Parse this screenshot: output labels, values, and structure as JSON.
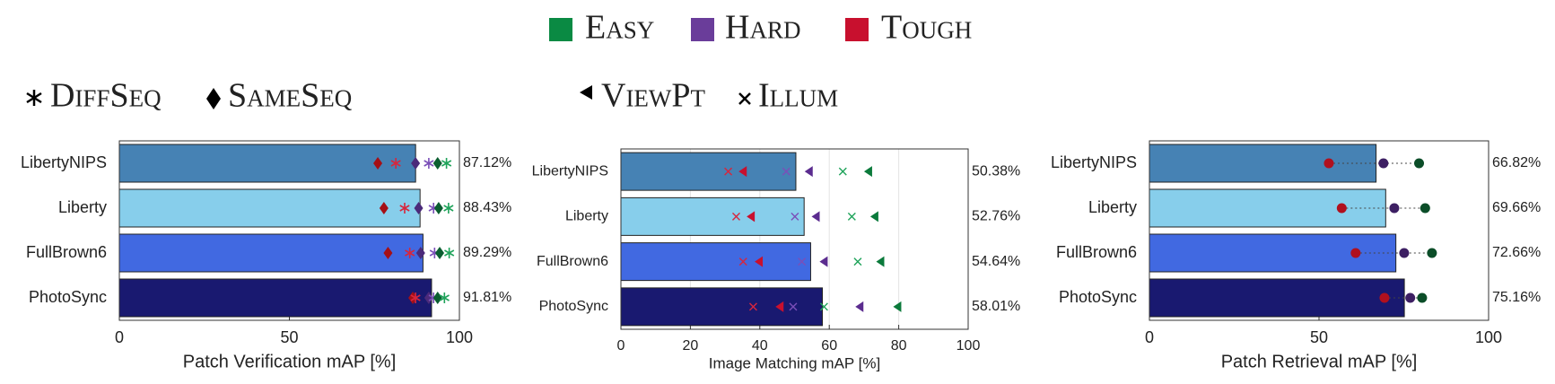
{
  "legend": [
    {
      "name": "Easy",
      "color": "#0a8a43"
    },
    {
      "name": "Hard",
      "color": "#6a3d9a"
    },
    {
      "name": "Tough",
      "color": "#c8102e"
    }
  ],
  "chart_data": [
    {
      "type": "bar",
      "xlabel": "Patch Verification mAP [%]",
      "marker_legend": [
        "DiffSeq",
        "SameSeq"
      ],
      "categories": [
        "LibertyNIPS",
        "Liberty",
        "FullBrown6",
        "PhotoSync"
      ],
      "values": [
        87.12,
        88.43,
        89.29,
        91.81
      ],
      "value_labels": [
        "87.12%",
        "88.43%",
        "89.29%",
        "91.81%"
      ],
      "bar_colors": [
        "#4682b4",
        "#87ceeb",
        "#4169e1",
        "#191970"
      ],
      "xlim": [
        0,
        100
      ],
      "xticks": [
        0,
        50,
        100
      ],
      "grid": false,
      "series": [
        {
          "name": "Tough",
          "marker": "SameSeq",
          "shape": "diamond",
          "color": "#a50f15",
          "values": [
            76,
            77.8,
            79,
            86.3
          ]
        },
        {
          "name": "Tough",
          "marker": "DiffSeq",
          "shape": "star",
          "color": "#d7263d",
          "values": [
            81.3,
            83.9,
            85.4,
            87.1
          ]
        },
        {
          "name": "Hard",
          "marker": "SameSeq",
          "shape": "diamond",
          "color": "#4b2a7a",
          "values": [
            87.1,
            88,
            88.6,
            91
          ]
        },
        {
          "name": "Hard",
          "marker": "DiffSeq",
          "shape": "star",
          "color": "#7b4fb8",
          "values": [
            91,
            92.4,
            92.7,
            92.4
          ]
        },
        {
          "name": "Easy",
          "marker": "SameSeq",
          "shape": "diamond",
          "color": "#0b5e30",
          "values": [
            93.6,
            93.9,
            94.2,
            93.6
          ]
        },
        {
          "name": "Easy",
          "marker": "DiffSeq",
          "shape": "star",
          "color": "#1fa35a",
          "values": [
            96.2,
            96.8,
            97,
            95.6
          ]
        }
      ]
    },
    {
      "type": "bar",
      "xlabel": "Image Matching mAP [%]",
      "marker_legend": [
        "ViewPt",
        "Illum"
      ],
      "categories": [
        "LibertyNIPS",
        "Liberty",
        "FullBrown6",
        "PhotoSync"
      ],
      "values": [
        50.38,
        52.76,
        54.64,
        58.01
      ],
      "value_labels": [
        "50.38%",
        "52.76%",
        "54.64%",
        "58.01%"
      ],
      "bar_colors": [
        "#4682b4",
        "#87ceeb",
        "#4169e1",
        "#191970"
      ],
      "xlim": [
        0,
        100
      ],
      "xticks": [
        0,
        20,
        40,
        60,
        80,
        100
      ],
      "grid": true,
      "series": [
        {
          "name": "Tough",
          "marker": "Illum",
          "shape": "cross",
          "color": "#d7263d",
          "values": [
            30.9,
            33.2,
            35.2,
            38.1
          ]
        },
        {
          "name": "Tough",
          "marker": "ViewPt",
          "shape": "triangle",
          "color": "#c8102e",
          "values": [
            35.2,
            37.5,
            39.8,
            45.8
          ]
        },
        {
          "name": "Hard",
          "marker": "Illum",
          "shape": "cross",
          "color": "#7b4fb8",
          "values": [
            47.6,
            50.1,
            52.1,
            49.6
          ]
        },
        {
          "name": "Hard",
          "marker": "ViewPt",
          "shape": "triangle",
          "color": "#5b2c8f",
          "values": [
            54.2,
            56.2,
            58.5,
            68.8
          ]
        },
        {
          "name": "Easy",
          "marker": "Illum",
          "shape": "cross",
          "color": "#1fa35a",
          "values": [
            63.9,
            66.5,
            68.2,
            58.5
          ]
        },
        {
          "name": "Easy",
          "marker": "ViewPt",
          "shape": "triangle",
          "color": "#0b7a3b",
          "values": [
            71.3,
            73.1,
            74.8,
            79.7
          ]
        }
      ]
    },
    {
      "type": "bar",
      "xlabel": "Patch Retrieval mAP [%]",
      "categories": [
        "LibertyNIPS",
        "Liberty",
        "FullBrown6",
        "PhotoSync"
      ],
      "values": [
        66.82,
        69.66,
        72.66,
        75.16
      ],
      "value_labels": [
        "66.82%",
        "69.66%",
        "72.66%",
        "75.16%"
      ],
      "bar_colors": [
        "#4682b4",
        "#87ceeb",
        "#4169e1",
        "#191970"
      ],
      "xlim": [
        0,
        100
      ],
      "xticks": [
        0,
        50,
        100
      ],
      "grid": false,
      "series": [
        {
          "name": "Tough",
          "shape": "circle",
          "color": "#b0101e",
          "values": [
            52.9,
            56.7,
            60.8,
            69.3
          ]
        },
        {
          "name": "Hard",
          "shape": "circle",
          "color": "#3d1f63",
          "values": [
            69,
            72.2,
            75.1,
            76.9
          ]
        },
        {
          "name": "Easy",
          "shape": "circle",
          "color": "#0b4d28",
          "values": [
            79.5,
            81.3,
            83.3,
            80.4
          ]
        }
      ]
    }
  ]
}
